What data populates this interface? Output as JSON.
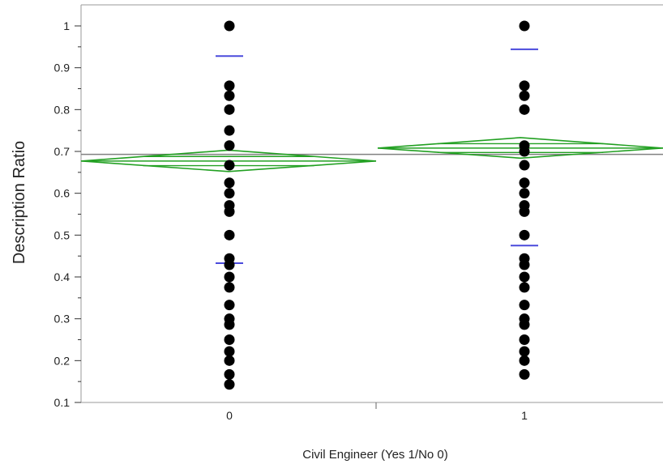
{
  "chart_data": {
    "type": "scatter",
    "xlabel": "Civil Engineer  (Yes 1/No 0)",
    "ylabel": "Description Ratio",
    "categories": [
      "0",
      "1"
    ],
    "ylim": [
      0.1,
      1.05
    ],
    "yticks": [
      0.1,
      0.2,
      0.3,
      0.4,
      0.5,
      0.6,
      0.7,
      0.8,
      0.9,
      1
    ],
    "ytick_labels": [
      "0.1",
      "0.2",
      "0.3",
      "0.4",
      "0.5",
      "0.6",
      "0.7",
      "0.8",
      "0.9",
      "1"
    ],
    "grand_mean": 0.693,
    "groups": [
      {
        "category": "0",
        "points": [
          1.0,
          0.857,
          0.833,
          0.8,
          0.75,
          0.714,
          0.667,
          0.625,
          0.6,
          0.571,
          0.556,
          0.5,
          0.444,
          0.429,
          0.4,
          0.375,
          0.333,
          0.3,
          0.286,
          0.25,
          0.222,
          0.2,
          0.167,
          0.143
        ],
        "mean": 0.677,
        "ci": [
          0.652,
          0.703
        ],
        "std_dev_upper": 0.928,
        "std_dev_lower": 0.433
      },
      {
        "category": "1",
        "points": [
          1.0,
          0.857,
          0.833,
          0.8,
          0.714,
          0.7,
          0.667,
          0.625,
          0.6,
          0.571,
          0.556,
          0.5,
          0.444,
          0.429,
          0.4,
          0.375,
          0.333,
          0.3,
          0.286,
          0.25,
          0.222,
          0.2,
          0.167
        ],
        "mean": 0.708,
        "ci": [
          0.684,
          0.733
        ],
        "std_dev_upper": 0.944,
        "std_dev_lower": 0.475
      }
    ],
    "colors": {
      "points": "#000000",
      "diamond": "#22a022",
      "std_dev": "#4a4adc",
      "grand_mean": "#808080",
      "frame": "#999999"
    },
    "grid": false
  }
}
